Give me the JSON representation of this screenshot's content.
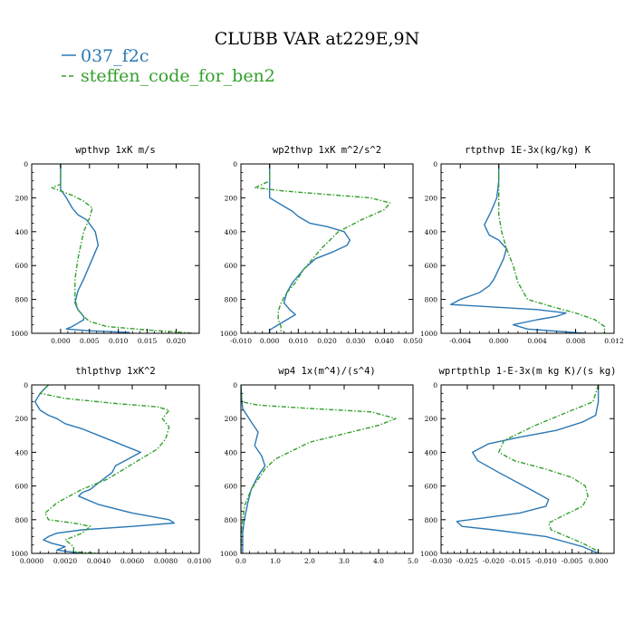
{
  "figure": {
    "title": "CLUBB VAR at229E,9N",
    "legend": [
      {
        "label": "037_f2c",
        "color": "#2a78b5",
        "dash": "solid"
      },
      {
        "label": "steffen_code_for_ben2",
        "color": "#33a02c",
        "dash": "dashed"
      }
    ]
  },
  "chart_data": [
    {
      "type": "line",
      "title": "wpthvp  1xK m/s",
      "xlim": [
        -0.005,
        0.024
      ],
      "ylim": [
        1000,
        0
      ],
      "xticks": [
        {
          "v": 0.0,
          "label": "0.000"
        },
        {
          "v": 0.005,
          "label": "0.005"
        },
        {
          "v": 0.01,
          "label": "0.010"
        },
        {
          "v": 0.015,
          "label": "0.015"
        },
        {
          "v": 0.02,
          "label": "0.020"
        }
      ],
      "yticks": [
        {
          "v": 0,
          "label": "0"
        },
        {
          "v": 200,
          "label": "200"
        },
        {
          "v": 400,
          "label": "400"
        },
        {
          "v": 600,
          "label": "600"
        },
        {
          "v": 800,
          "label": "800"
        },
        {
          "v": 1000,
          "label": "1000"
        }
      ],
      "series": [
        {
          "name": "037_f2c",
          "x": [
            0.0,
            0.0,
            0.0,
            0.001,
            0.002,
            0.003,
            0.0045,
            0.006,
            0.0065,
            0.006,
            0.0055,
            0.005,
            0.004,
            0.003,
            0.0025,
            0.003,
            0.0035,
            0.004,
            0.004,
            0.003,
            0.002,
            0.001,
            0.005,
            0.012
          ],
          "y": [
            0,
            100,
            150,
            200,
            260,
            300,
            330,
            400,
            480,
            520,
            560,
            600,
            680,
            750,
            820,
            860,
            880,
            900,
            920,
            940,
            960,
            975,
            985,
            995
          ]
        },
        {
          "name": "steffen_code_for_ben2",
          "x": [
            0.0,
            0.0,
            -0.0015,
            0.0,
            0.002,
            0.004,
            0.0055,
            0.005,
            0.004,
            0.0035,
            0.003,
            0.0025,
            0.0025,
            0.003,
            0.004,
            0.005,
            0.008,
            0.015,
            0.023
          ],
          "y": [
            0,
            120,
            140,
            160,
            185,
            220,
            260,
            320,
            400,
            480,
            560,
            680,
            800,
            860,
            900,
            930,
            960,
            980,
            1000
          ]
        }
      ]
    },
    {
      "type": "line",
      "title": "wp2thvp  1xK m^2/s^2",
      "xlim": [
        -0.01,
        0.05
      ],
      "ylim": [
        1000,
        0
      ],
      "xticks": [
        {
          "v": -0.01,
          "label": "-0.010"
        },
        {
          "v": 0.0,
          "label": "0.000"
        },
        {
          "v": 0.01,
          "label": "0.010"
        },
        {
          "v": 0.02,
          "label": "0.020"
        },
        {
          "v": 0.03,
          "label": "0.030"
        },
        {
          "v": 0.04,
          "label": "0.040"
        },
        {
          "v": 0.05,
          "label": "0.050"
        }
      ],
      "yticks": [
        {
          "v": 0,
          "label": "0"
        },
        {
          "v": 200,
          "label": "200"
        },
        {
          "v": 400,
          "label": "400"
        },
        {
          "v": 600,
          "label": "600"
        },
        {
          "v": 800,
          "label": "800"
        },
        {
          "v": 1000,
          "label": "1000"
        }
      ],
      "series": [
        {
          "name": "037_f2c",
          "x": [
            0.0,
            0.0,
            0.0,
            0.004,
            0.008,
            0.01,
            0.014,
            0.02,
            0.026,
            0.028,
            0.027,
            0.022,
            0.016,
            0.012,
            0.008,
            0.006,
            0.005,
            0.007,
            0.009,
            0.006,
            0.003,
            0.0,
            0.0
          ],
          "y": [
            0,
            120,
            200,
            240,
            280,
            310,
            350,
            370,
            400,
            450,
            480,
            520,
            560,
            620,
            700,
            760,
            820,
            860,
            890,
            920,
            950,
            980,
            995
          ]
        },
        {
          "name": "steffen_code_for_ben2",
          "x": [
            0.0,
            0.0,
            -0.005,
            0.005,
            0.02,
            0.035,
            0.042,
            0.04,
            0.032,
            0.024,
            0.021,
            0.018,
            0.015,
            0.012,
            0.009,
            0.006,
            0.004,
            0.003,
            0.003,
            0.004,
            0.004
          ],
          "y": [
            0,
            100,
            140,
            160,
            180,
            200,
            230,
            270,
            330,
            400,
            450,
            500,
            560,
            620,
            700,
            760,
            820,
            870,
            920,
            960,
            990
          ]
        }
      ]
    },
    {
      "type": "line",
      "title": "rtpthvp  1E-3x(kg/kg) K",
      "xlim": [
        -0.006,
        0.012
      ],
      "ylim": [
        1000,
        0
      ],
      "xticks": [
        {
          "v": -0.004,
          "label": "-0.004"
        },
        {
          "v": 0.0,
          "label": "0.000"
        },
        {
          "v": 0.004,
          "label": "0.004"
        },
        {
          "v": 0.008,
          "label": "0.008"
        },
        {
          "v": 0.012,
          "label": "0.012"
        }
      ],
      "yticks": [
        {
          "v": 0,
          "label": "0"
        },
        {
          "v": 200,
          "label": "200"
        },
        {
          "v": 400,
          "label": "400"
        },
        {
          "v": 600,
          "label": "600"
        },
        {
          "v": 800,
          "label": "800"
        },
        {
          "v": 1000,
          "label": "1000"
        }
      ],
      "series": [
        {
          "name": "037_f2c",
          "x": [
            0.0,
            0.0,
            -0.0002,
            -0.0008,
            -0.0015,
            -0.001,
            0.0,
            0.0008,
            0.0005,
            0.0,
            -0.0005,
            -0.001,
            -0.002,
            -0.004,
            -0.005,
            -0.002,
            0.004,
            0.007,
            0.006,
            0.004,
            0.0015,
            0.003,
            0.009
          ],
          "y": [
            0,
            100,
            200,
            280,
            360,
            420,
            450,
            500,
            560,
            620,
            680,
            720,
            760,
            800,
            830,
            840,
            860,
            880,
            900,
            920,
            950,
            975,
            1000
          ]
        },
        {
          "name": "steffen_code_for_ben2",
          "x": [
            0.0,
            0.0,
            0.0,
            0.0003,
            0.0008,
            0.0015,
            0.002,
            0.003,
            0.006,
            0.008,
            0.01,
            0.011,
            0.011
          ],
          "y": [
            0,
            150,
            300,
            400,
            500,
            600,
            700,
            800,
            850,
            880,
            920,
            960,
            1000
          ]
        }
      ]
    },
    {
      "type": "line",
      "title": "thlpthvp  1xK^2",
      "xlim": [
        0.0,
        0.01
      ],
      "ylim": [
        1000,
        0
      ],
      "xticks": [
        {
          "v": 0.0,
          "label": "0.0000"
        },
        {
          "v": 0.002,
          "label": "0.0020"
        },
        {
          "v": 0.004,
          "label": "0.0040"
        },
        {
          "v": 0.006,
          "label": "0.0060"
        },
        {
          "v": 0.008,
          "label": "0.0080"
        },
        {
          "v": 0.01,
          "label": "0.0100"
        }
      ],
      "yticks": [
        {
          "v": 0,
          "label": "0"
        },
        {
          "v": 200,
          "label": "200"
        },
        {
          "v": 400,
          "label": "400"
        },
        {
          "v": 600,
          "label": "600"
        },
        {
          "v": 800,
          "label": "800"
        },
        {
          "v": 1000,
          "label": "1000"
        }
      ],
      "series": [
        {
          "name": "037_f2c",
          "x": [
            0.001,
            0.0005,
            0.0002,
            0.0005,
            0.001,
            0.0015,
            0.002,
            0.003,
            0.004,
            0.005,
            0.006,
            0.0065,
            0.005,
            0.0048,
            0.004,
            0.0035,
            0.003,
            0.0028,
            0.004,
            0.006,
            0.0082,
            0.0085,
            0.006,
            0.003,
            0.0015,
            0.001,
            0.0007,
            0.0012,
            0.002,
            0.0015,
            0.003
          ],
          "y": [
            0,
            50,
            100,
            150,
            180,
            200,
            230,
            260,
            300,
            340,
            380,
            400,
            480,
            520,
            580,
            620,
            640,
            660,
            710,
            760,
            800,
            820,
            840,
            860,
            880,
            900,
            920,
            940,
            960,
            980,
            1000
          ]
        },
        {
          "name": "steffen_code_for_ben2",
          "x": [
            0.001,
            0.0005,
            0.002,
            0.005,
            0.0075,
            0.0082,
            0.0078,
            0.0082,
            0.008,
            0.0075,
            0.0065,
            0.0055,
            0.0045,
            0.003,
            0.0015,
            0.0008,
            0.001,
            0.0025,
            0.0035,
            0.003,
            0.002,
            0.0025,
            0.0025,
            0.004
          ],
          "y": [
            0,
            50,
            80,
            110,
            130,
            150,
            200,
            250,
            320,
            380,
            440,
            500,
            560,
            620,
            700,
            760,
            800,
            820,
            840,
            880,
            920,
            960,
            990,
            1000
          ]
        }
      ]
    },
    {
      "type": "line",
      "title": "wp4  1x(m^4)/(s^4)",
      "xlim": [
        0.0,
        5.0
      ],
      "ylim": [
        1000,
        0
      ],
      "xticks": [
        {
          "v": 0.0,
          "label": "0.0"
        },
        {
          "v": 1.0,
          "label": "1.0"
        },
        {
          "v": 2.0,
          "label": "2.0"
        },
        {
          "v": 3.0,
          "label": "3.0"
        },
        {
          "v": 4.0,
          "label": "4.0"
        },
        {
          "v": 5.0,
          "label": "5.0"
        }
      ],
      "yticks": [
        {
          "v": 0,
          "label": "0"
        },
        {
          "v": 200,
          "label": "200"
        },
        {
          "v": 400,
          "label": "400"
        },
        {
          "v": 600,
          "label": "600"
        },
        {
          "v": 800,
          "label": "800"
        },
        {
          "v": 1000,
          "label": "1000"
        }
      ],
      "series": [
        {
          "name": "037_f2c",
          "x": [
            0.0,
            0.02,
            0.05,
            0.3,
            0.5,
            0.4,
            0.6,
            0.7,
            0.5,
            0.3,
            0.2,
            0.1,
            0.05,
            0.05,
            0.05
          ],
          "y": [
            0,
            80,
            140,
            220,
            280,
            360,
            420,
            480,
            540,
            620,
            700,
            800,
            880,
            950,
            1000
          ]
        },
        {
          "name": "steffen_code_for_ben2",
          "x": [
            0.0,
            0.02,
            0.5,
            2.0,
            3.8,
            4.5,
            4.0,
            3.0,
            2.0,
            1.5,
            1.0,
            0.7,
            0.5,
            0.3,
            0.1,
            0.02,
            0.0
          ],
          "y": [
            0,
            100,
            120,
            140,
            160,
            200,
            240,
            290,
            340,
            390,
            440,
            500,
            560,
            620,
            720,
            850,
            1000
          ]
        }
      ]
    },
    {
      "type": "line",
      "title": "wprtpthlp  1-E-3x(m kg K)/(s kg)",
      "xlim": [
        -0.03,
        0.003
      ],
      "ylim": [
        1000,
        0
      ],
      "xticks": [
        {
          "v": -0.03,
          "label": "-0.030"
        },
        {
          "v": -0.025,
          "label": "-0.025"
        },
        {
          "v": -0.02,
          "label": "-0.020"
        },
        {
          "v": -0.015,
          "label": "-0.015"
        },
        {
          "v": -0.01,
          "label": "-0.010"
        },
        {
          "v": -0.005,
          "label": "-0.005"
        },
        {
          "v": 0.0,
          "label": "0.000"
        }
      ],
      "yticks": [
        {
          "v": 0,
          "label": "0"
        },
        {
          "v": 200,
          "label": "200"
        },
        {
          "v": 400,
          "label": "400"
        },
        {
          "v": 600,
          "label": "600"
        },
        {
          "v": 800,
          "label": "800"
        },
        {
          "v": 1000,
          "label": "1000"
        }
      ],
      "series": [
        {
          "name": "037_f2c",
          "x": [
            0.0,
            0.0,
            -0.0005,
            -0.003,
            -0.008,
            -0.015,
            -0.021,
            -0.024,
            -0.023,
            -0.019,
            -0.013,
            -0.0095,
            -0.01,
            -0.015,
            -0.022,
            -0.027,
            -0.026,
            -0.02,
            -0.01,
            -0.003,
            0.0
          ],
          "y": [
            0,
            100,
            180,
            220,
            270,
            310,
            350,
            400,
            450,
            520,
            620,
            680,
            720,
            760,
            790,
            810,
            840,
            860,
            900,
            960,
            1000
          ]
        },
        {
          "name": "steffen_code_for_ben2",
          "x": [
            0.0,
            -0.001,
            -0.005,
            -0.012,
            -0.018,
            -0.019,
            -0.016,
            -0.01,
            -0.005,
            -0.0025,
            -0.002,
            -0.003,
            -0.007,
            -0.0095,
            -0.009,
            -0.006,
            -0.003,
            -0.0005,
            0.0005
          ],
          "y": [
            0,
            100,
            150,
            240,
            330,
            400,
            450,
            500,
            550,
            600,
            660,
            720,
            780,
            820,
            860,
            900,
            940,
            980,
            1000
          ]
        }
      ]
    }
  ]
}
